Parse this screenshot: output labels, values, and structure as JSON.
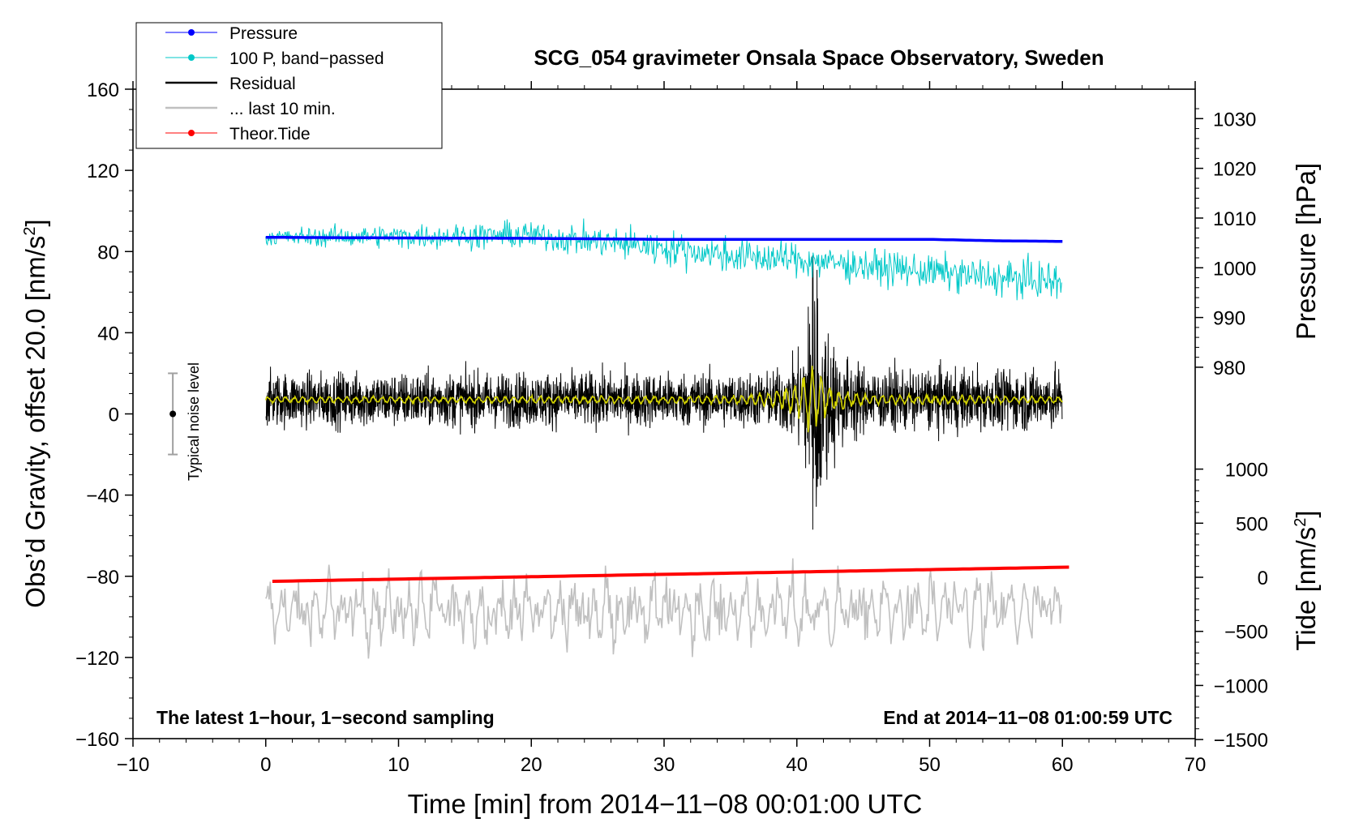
{
  "chart_data": {
    "type": "line",
    "title": "SCG_054 gravimeter Onsala Space Observatory, Sweden",
    "xlabel": "Time [min] from 2014−11−08 00:01:00 UTC",
    "ylabel": "Obs’d Gravity, offset 20.0 [nm/s",
    "ylabel_sup": "2",
    "ylabel_close": "]",
    "y2label": "Pressure [hPa]",
    "y3label": "Tide [nm/s",
    "y3label_sup": "2",
    "y3label_close": "]",
    "xlim": [
      -10,
      70
    ],
    "ylim": [
      -160,
      160
    ],
    "xticks": [
      -10,
      0,
      10,
      20,
      30,
      40,
      50,
      60,
      70
    ],
    "xtick_labels": [
      "−10",
      "0",
      "10",
      "20",
      "30",
      "40",
      "50",
      "60",
      "70"
    ],
    "yticks": [
      160,
      120,
      80,
      40,
      0,
      -40,
      -80,
      -120,
      -160
    ],
    "ytick_labels": [
      "160",
      "120",
      "80",
      "40",
      "0",
      "−40",
      "−80",
      "−120",
      "−160"
    ],
    "pressure_axis": {
      "ticks": [
        1030,
        1020,
        1010,
        1000,
        990,
        980
      ],
      "tick_labels": [
        "1030",
        "1020",
        "1010",
        "1000",
        "990",
        "980"
      ],
      "gravity_at_980": 23,
      "gravity_per_hpa": 2.45
    },
    "tide_axis": {
      "ticks": [
        1000,
        500,
        0,
        -500,
        -1000,
        -1500
      ],
      "tick_labels": [
        "1000",
        "500",
        "0",
        "−500",
        "−1000",
        "−1500"
      ],
      "gravity_at_0": -80.5,
      "gravity_per_unit": 0.0533
    },
    "legend": [
      {
        "label": "Pressure",
        "color": "#0000ff",
        "marker": true
      },
      {
        "label": "100 P, band−passed",
        "color": "#00c8c8",
        "marker": true
      },
      {
        "label": "Residual",
        "color": "#000000",
        "marker": false
      },
      {
        "label": "... last 10 min.",
        "color": "#c0c0c0",
        "marker": false
      },
      {
        "label": "Theor.Tide",
        "color": "#ff0000",
        "marker": true
      }
    ],
    "annotations": {
      "left": "The latest 1−hour, 1−second sampling",
      "right": "End at 2014−11−08 01:00:59 UTC",
      "noise_label": "Typical noise level"
    },
    "noise_bar": {
      "x": -7,
      "center": 0,
      "low": -20,
      "high": 20
    },
    "series": [
      {
        "name": "Pressure",
        "color": "#0000ff",
        "units": "gravity-scaled hPa",
        "x": [
          0,
          10,
          20,
          30,
          40,
          50,
          55,
          60
        ],
        "y": [
          87,
          86.7,
          86.5,
          86,
          86,
          86,
          85.3,
          85
        ]
      },
      {
        "name": "100 P, band-passed",
        "color": "#00c8c8",
        "trend_x": [
          0,
          10,
          20,
          30,
          35,
          40,
          45,
          50,
          55,
          60
        ],
        "trend_y": [
          87,
          87.5,
          88,
          82,
          78,
          76,
          73,
          70,
          67,
          65
        ],
        "amp_x": [
          0,
          10,
          20,
          30,
          40,
          50,
          60
        ],
        "amp_y": [
          3,
          4,
          5,
          6,
          6,
          6,
          7
        ]
      },
      {
        "name": "Residual",
        "color": "#000000",
        "center": 7,
        "amp_x": [
          0,
          38,
          40,
          41,
          41.5,
          42,
          43,
          45,
          60
        ],
        "amp_y": [
          12,
          12,
          18,
          45,
          55,
          45,
          22,
          14,
          13
        ],
        "events": [
          {
            "x": 41.2,
            "peak_max": 78,
            "peak_min": -57
          }
        ]
      },
      {
        "name": "Filtered residual",
        "color": "#d4d400",
        "center": 7,
        "amp_x": [
          0,
          35,
          38,
          40,
          41,
          42,
          43,
          45,
          60
        ],
        "amp_y": [
          1.2,
          1.5,
          3,
          6,
          12,
          8,
          4,
          2,
          1.2
        ]
      },
      {
        "name": "... last 10 min.",
        "color": "#c0c0c0",
        "center": -97,
        "low": -128,
        "high": -58
      },
      {
        "name": "Theor.Tide",
        "color": "#ff0000",
        "x": [
          0.5,
          60.5
        ],
        "y": [
          -82.5,
          -75.5
        ]
      }
    ]
  }
}
